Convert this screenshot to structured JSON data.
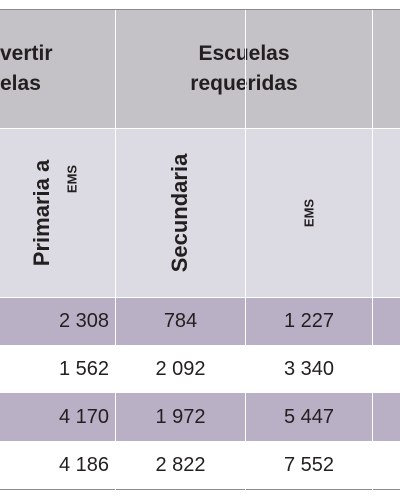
{
  "header": {
    "group_1": [
      "vertir",
      "elas"
    ],
    "group_2": [
      "Escuelas",
      "requeridas"
    ]
  },
  "subheader": {
    "col_1": [
      "Primaria a",
      "EMS"
    ],
    "col_2": "Secundaria",
    "col_3": "EMS"
  },
  "table": {
    "rows": [
      [
        "2 308",
        "784",
        "1 227"
      ],
      [
        "1 562",
        "2 092",
        "3 340"
      ],
      [
        "4 170",
        "1 972",
        "5 447"
      ],
      [
        "4 186",
        "2 822",
        "7 552"
      ]
    ]
  }
}
